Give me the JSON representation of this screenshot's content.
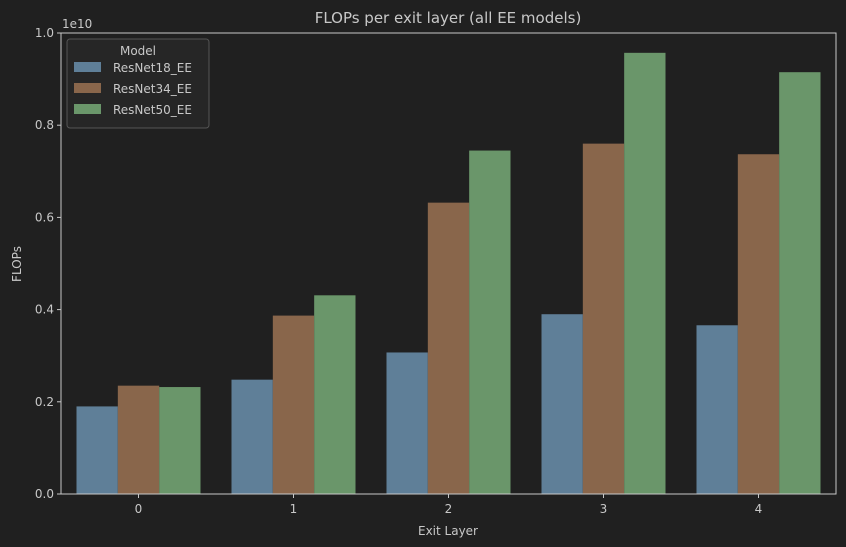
{
  "chart_data": {
    "type": "bar",
    "title": "FLOPs per exit layer (all EE models)",
    "xlabel": "Exit Layer",
    "ylabel": "FLOPs",
    "y_offset_label": "1e10",
    "categories": [
      "0",
      "1",
      "2",
      "3",
      "4"
    ],
    "ylim": [
      0,
      1.0
    ],
    "yticks": [
      "0.0",
      "0.2",
      "0.4",
      "0.6",
      "0.8",
      "1.0"
    ],
    "grid": false,
    "legend_title": "Model",
    "legend_position": "top-left",
    "series": [
      {
        "name": "ResNet18_EE",
        "color": "#5f7f98",
        "values": [
          0.19,
          0.248,
          0.307,
          0.39,
          0.366
        ]
      },
      {
        "name": "ResNet34_EE",
        "color": "#89664b",
        "values": [
          0.235,
          0.387,
          0.632,
          0.76,
          0.737
        ]
      },
      {
        "name": "ResNet50_EE",
        "color": "#6a966a",
        "values": [
          0.232,
          0.431,
          0.745,
          0.957,
          0.915
        ]
      }
    ]
  }
}
